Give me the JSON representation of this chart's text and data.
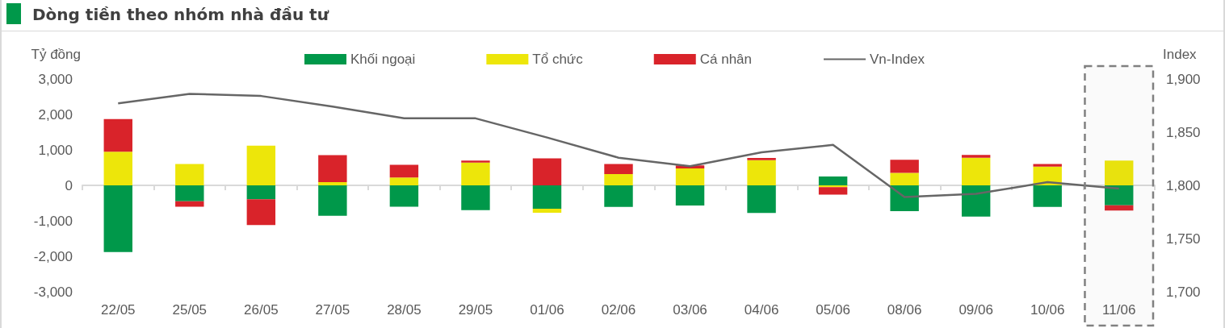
{
  "chart_data": {
    "type": "bar",
    "title": "Dòng tiền theo nhóm nhà đầu tư",
    "ylabel": "Tỷ đồng",
    "y2label": "Index",
    "categories": [
      "22/05",
      "25/05",
      "26/05",
      "27/05",
      "28/05",
      "29/05",
      "01/06",
      "02/06",
      "03/06",
      "04/06",
      "05/06",
      "08/06",
      "09/06",
      "10/06",
      "11/06"
    ],
    "stacked": true,
    "series": [
      {
        "name": "Khối ngoại",
        "color": "#00984a",
        "values": [
          -1880,
          -450,
          -390,
          -860,
          -600,
          -700,
          -660,
          -610,
          -570,
          -780,
          250,
          -730,
          -880,
          -610,
          -560
        ]
      },
      {
        "name": "Tổ chức",
        "color": "#ede60a",
        "values": [
          950,
          600,
          1120,
          90,
          220,
          640,
          -110,
          320,
          480,
          710,
          -50,
          350,
          780,
          530,
          700
        ]
      },
      {
        "name": "Cá nhân",
        "color": "#d9232a",
        "values": [
          920,
          -150,
          -730,
          760,
          360,
          60,
          760,
          280,
          80,
          60,
          -210,
          370,
          80,
          70,
          -150
        ]
      },
      {
        "name": "Vn-Index",
        "type": "line",
        "axis": "y2",
        "color": "#666666",
        "marker": "none",
        "values": [
          1877,
          1886,
          1884,
          1874,
          1863,
          1863,
          1845,
          1826,
          1818,
          1831,
          1838,
          1789,
          1792,
          1803,
          1797
        ]
      }
    ],
    "ylim": [
      -3000,
      3000
    ],
    "yticks": [
      {
        "value": -3000,
        "label": "-3,000"
      },
      {
        "value": -2000,
        "label": "-2,000"
      },
      {
        "value": -1000,
        "label": "-1,000"
      },
      0,
      {
        "value": 1000,
        "label": "1,000"
      },
      {
        "value": 2000,
        "label": "2,000"
      },
      {
        "value": 3000,
        "label": "3,000"
      }
    ],
    "y2lim": [
      1700,
      1900
    ],
    "y2ticks": [
      {
        "value": 1700,
        "label": "1,700"
      },
      {
        "value": 1750,
        "label": "1,750"
      },
      {
        "value": 1800,
        "label": "1,800"
      },
      {
        "value": 1850,
        "label": "1,850"
      },
      {
        "value": 1900,
        "label": "1,900"
      }
    ],
    "bands": [
      {
        "axis": "x",
        "from": "11/06",
        "to": "11/06",
        "color": "#808080"
      }
    ],
    "legend": "top"
  }
}
